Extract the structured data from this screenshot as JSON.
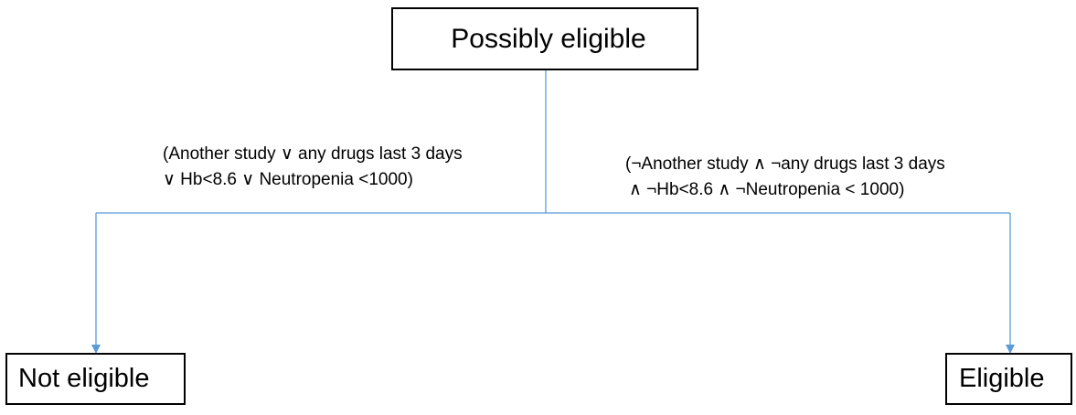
{
  "diagram": {
    "root": {
      "label": "Possibly eligible"
    },
    "left_branch": {
      "condition_line1": "(Another study ∨ any drugs last 3 days",
      "condition_line2": "∨ Hb<8.6 ∨ Neutropenia <1000)",
      "target": "Not eligible"
    },
    "right_branch": {
      "condition_line1": "(¬Another study ∧ ¬any drugs last 3 days",
      "condition_line2": "∧ ¬Hb<8.6 ∧ ¬Neutropenia < 1000)",
      "target": "Eligible"
    },
    "colors": {
      "connector": "#5b9bd5",
      "box_border": "#000000",
      "text": "#000000"
    }
  }
}
